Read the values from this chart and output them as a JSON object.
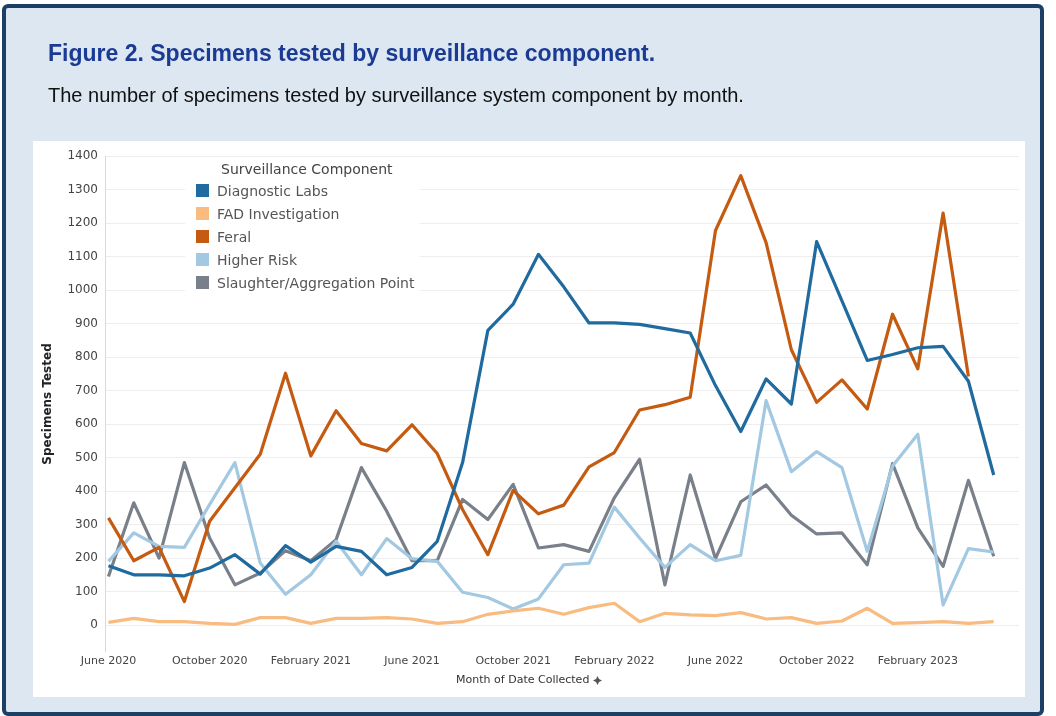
{
  "chart_data": {
    "type": "line",
    "title": "Figure 2. Specimens tested by surveillance component.",
    "subtitle": "The number of specimens tested by surveillance system component by month.",
    "xlabel": "Month of Date Collected",
    "ylabel": "Specimens Tested",
    "legend_title": "Surveillance Component",
    "legend": "top left",
    "grid": "y",
    "x": [
      "2020-06",
      "2020-07",
      "2020-08",
      "2020-09",
      "2020-10",
      "2020-11",
      "2020-12",
      "2021-01",
      "2021-02",
      "2021-03",
      "2021-04",
      "2021-05",
      "2021-06",
      "2021-07",
      "2021-08",
      "2021-09",
      "2021-10",
      "2021-11",
      "2021-12",
      "2022-01",
      "2022-02",
      "2022-03",
      "2022-04",
      "2022-05",
      "2022-06",
      "2022-07",
      "2022-08",
      "2022-09",
      "2022-10",
      "2022-11",
      "2022-12",
      "2023-01",
      "2023-02",
      "2023-03",
      "2023-04",
      "2023-05"
    ],
    "xlim": [
      "2020-06",
      "2023-06"
    ],
    "xticks": [
      {
        "value": "2020-06",
        "label": "June 2020"
      },
      {
        "value": "2020-10",
        "label": "October 2020"
      },
      {
        "value": "2021-02",
        "label": "February 2021"
      },
      {
        "value": "2021-06",
        "label": "June 2021"
      },
      {
        "value": "2021-10",
        "label": "October 2021"
      },
      {
        "value": "2022-02",
        "label": "February 2022"
      },
      {
        "value": "2022-06",
        "label": "June 2022"
      },
      {
        "value": "2022-10",
        "label": "October 2022"
      },
      {
        "value": "2023-02",
        "label": "February 2023"
      }
    ],
    "ylim": [
      -80,
      1400
    ],
    "yticks": [
      0,
      100,
      200,
      300,
      400,
      500,
      600,
      700,
      800,
      900,
      1000,
      1100,
      1200,
      1300,
      1400
    ],
    "series": [
      {
        "name": "Diagnostic Labs",
        "color": "#1f6a9e",
        "values": [
          177,
          150,
          150,
          147,
          170,
          210,
          152,
          237,
          188,
          235,
          220,
          150,
          172,
          250,
          485,
          880,
          958,
          1107,
          1010,
          902,
          902,
          898,
          885,
          872,
          715,
          578,
          735,
          660,
          1145,
          968,
          790,
          808,
          828,
          832,
          728,
          448
        ]
      },
      {
        "name": "FAD Investigation",
        "color": "#f8bb80",
        "values": [
          8,
          20,
          10,
          10,
          5,
          2,
          22,
          22,
          5,
          20,
          20,
          22,
          18,
          5,
          10,
          32,
          42,
          50,
          32,
          52,
          65,
          10,
          35,
          30,
          28,
          37,
          18,
          22,
          5,
          12,
          50,
          5,
          7,
          10,
          5,
          10
        ]
      },
      {
        "name": "Feral",
        "color": "#c55a11",
        "values": [
          320,
          192,
          232,
          70,
          310,
          410,
          510,
          752,
          505,
          640,
          542,
          520,
          598,
          512,
          345,
          210,
          402,
          332,
          358,
          472,
          515,
          642,
          658,
          680,
          1178,
          1342,
          1142,
          822,
          665,
          732,
          645,
          928,
          765,
          1230,
          742,
          null
        ]
      },
      {
        "name": "Higher Risk",
        "color": "#a3c8e2",
        "values": [
          190,
          275,
          235,
          232,
          360,
          485,
          185,
          92,
          150,
          250,
          150,
          258,
          198,
          190,
          98,
          82,
          48,
          78,
          180,
          185,
          352,
          260,
          172,
          240,
          192,
          208,
          670,
          458,
          518,
          470,
          220,
          475,
          570,
          60,
          228,
          218
        ]
      },
      {
        "name": "Slaughter/Aggregation Point",
        "color": "#7a8089",
        "values": [
          145,
          365,
          200,
          485,
          260,
          120,
          155,
          222,
          192,
          255,
          470,
          340,
          192,
          192,
          375,
          315,
          420,
          230,
          240,
          220,
          380,
          495,
          120,
          448,
          198,
          368,
          418,
          328,
          272,
          275,
          180,
          482,
          290,
          175,
          432,
          205
        ]
      }
    ]
  }
}
